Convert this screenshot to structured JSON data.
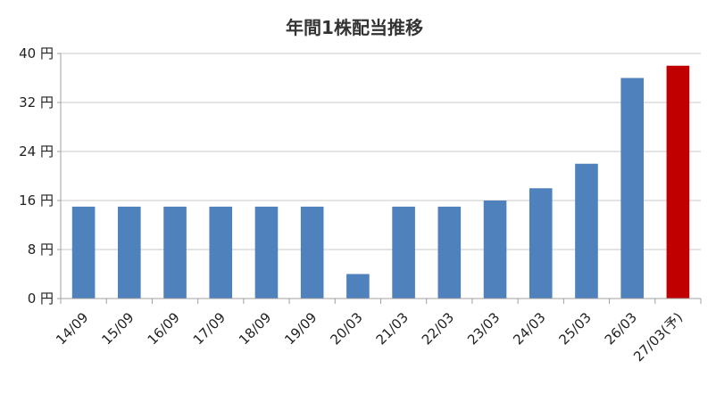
{
  "chart_data": {
    "type": "bar",
    "title": "年間1株配当推移",
    "xlabel": "",
    "ylabel": "",
    "y_unit": "円",
    "ylim": [
      0,
      40
    ],
    "yticks": [
      0,
      8,
      16,
      24,
      32,
      40
    ],
    "ytick_labels": [
      "0 円",
      "8 円",
      "16 円",
      "24 円",
      "32 円",
      "40 円"
    ],
    "grid": true,
    "categories": [
      "14/09",
      "15/09",
      "16/09",
      "17/09",
      "18/09",
      "19/09",
      "20/03",
      "21/03",
      "22/03",
      "23/03",
      "24/03",
      "25/03",
      "26/03",
      "27/03(予)"
    ],
    "values": [
      15,
      15,
      15,
      15,
      15,
      15,
      4,
      15,
      15,
      16,
      18,
      22,
      36,
      38
    ],
    "forecast_index": 13,
    "colors": {
      "actual": "#4f81bd",
      "forecast": "#c00000",
      "grid": "#c8c8c8",
      "axis": "#a0a0a0"
    }
  }
}
